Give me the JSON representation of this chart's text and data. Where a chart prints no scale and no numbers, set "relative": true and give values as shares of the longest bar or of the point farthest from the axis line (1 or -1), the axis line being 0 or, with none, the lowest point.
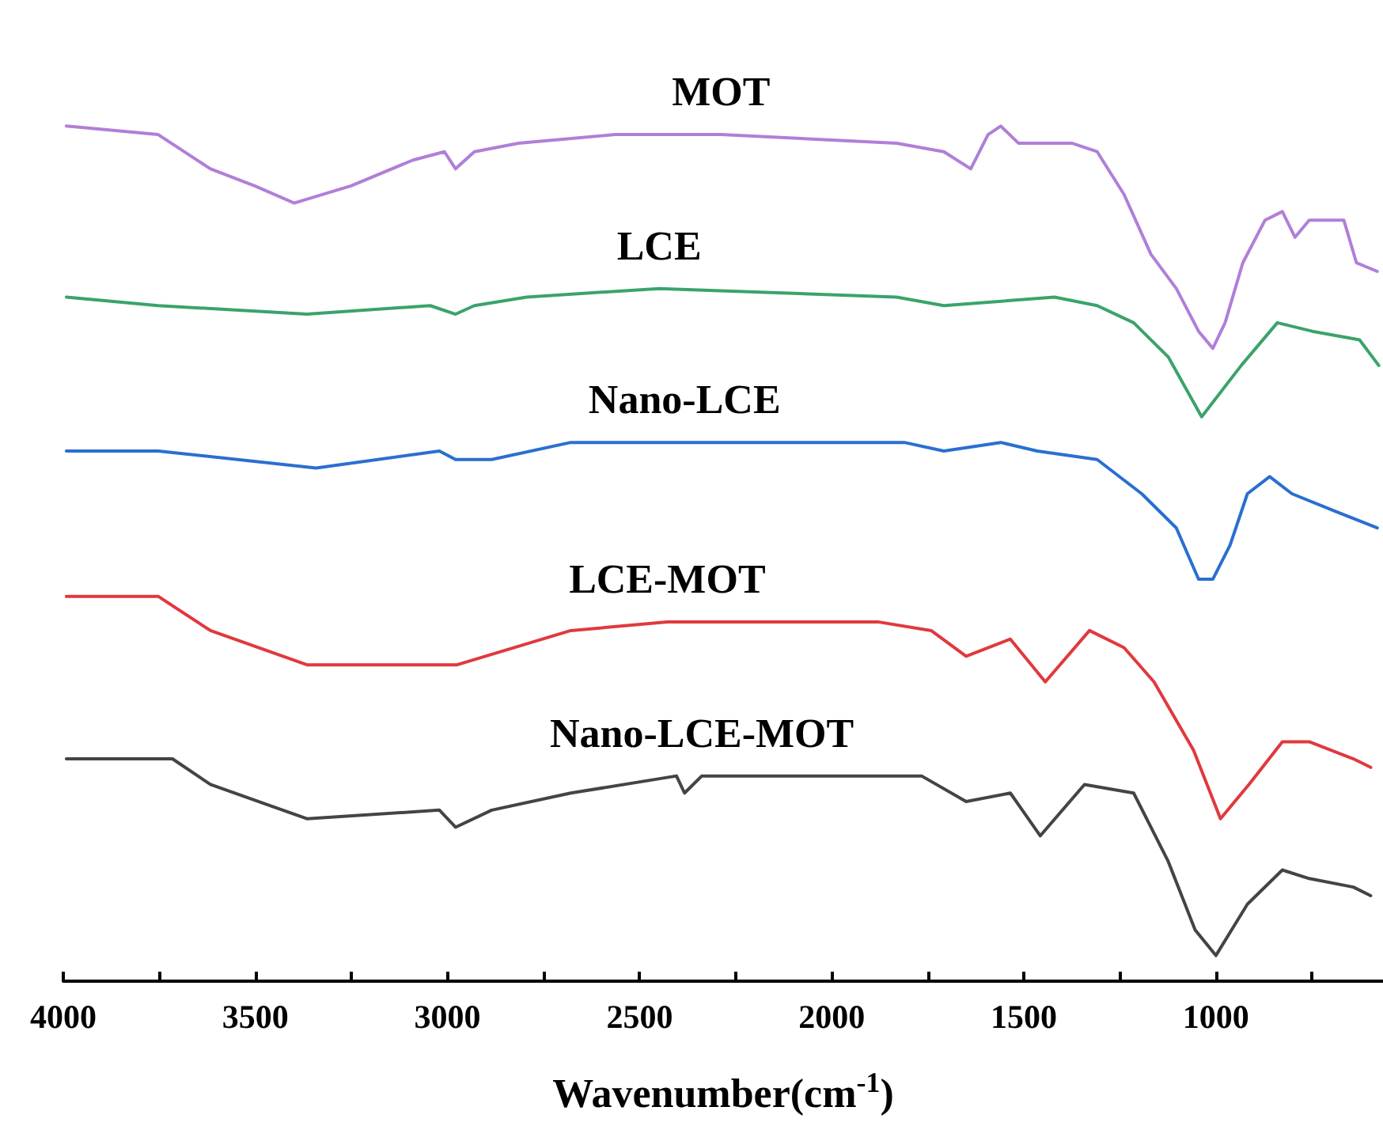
{
  "chart_data": {
    "type": "line",
    "relative": true,
    "xlabel": "Wavenumber(cm$^{-1}$)",
    "xlim": [
      4000,
      565
    ],
    "xticks": [
      4000,
      {
        "value": 3750,
        "label": null
      },
      3500,
      {
        "value": 3250,
        "label": null
      },
      3000,
      {
        "value": 2750,
        "label": null
      },
      2500,
      {
        "value": 2250,
        "label": null
      },
      2000,
      {
        "value": 1750,
        "label": null
      },
      1500,
      {
        "value": 1250,
        "label": null
      },
      1000,
      {
        "value": 750,
        "label": null
      }
    ],
    "grid": false,
    "legend": false,
    "marker": "none",
    "line_style": "solid",
    "series": [
      {
        "name": "MOT",
        "color": "#b07fd8",
        "x": [
          3992,
          3753,
          3617,
          3502,
          3399,
          3251,
          3091,
          3008,
          2979,
          2930,
          2815,
          2564,
          2288,
          1831,
          1708,
          1638,
          1593,
          1560,
          1514,
          1375,
          1309,
          1239,
          1169,
          1103,
          1045,
          1008,
          976,
          930,
          872,
          827,
          794,
          757,
          667,
          634,
          580
        ],
        "values": [
          1.0,
          0.99,
          0.95,
          0.93,
          0.91,
          0.93,
          0.96,
          0.97,
          0.95,
          0.97,
          0.98,
          0.99,
          0.99,
          0.98,
          0.97,
          0.95,
          0.99,
          1.0,
          0.98,
          0.98,
          0.97,
          0.92,
          0.85,
          0.81,
          0.76,
          0.74,
          0.77,
          0.84,
          0.89,
          0.9,
          0.87,
          0.89,
          0.89,
          0.84,
          0.83
        ]
      },
      {
        "name": "LCE",
        "color": "#3aa36b",
        "x": [
          3992,
          3753,
          3366,
          3045,
          2979,
          2930,
          2794,
          2449,
          1831,
          1708,
          1420,
          1309,
          1214,
          1124,
          1037,
          934,
          840,
          749,
          626,
          576
        ],
        "values": [
          0.8,
          0.79,
          0.78,
          0.79,
          0.78,
          0.79,
          0.8,
          0.81,
          0.8,
          0.79,
          0.8,
          0.79,
          0.77,
          0.73,
          0.66,
          0.72,
          0.77,
          0.76,
          0.75,
          0.72
        ]
      },
      {
        "name": "Nano-LCE",
        "color": "#2a6fd0",
        "x": [
          3992,
          3753,
          3342,
          3021,
          2979,
          2885,
          2679,
          2383,
          1811,
          1708,
          1560,
          1465,
          1309,
          1193,
          1103,
          1045,
          1008,
          963,
          918,
          860,
          802,
          692,
          580
        ],
        "values": [
          0.62,
          0.62,
          0.6,
          0.62,
          0.61,
          0.61,
          0.63,
          0.63,
          0.63,
          0.62,
          0.63,
          0.62,
          0.61,
          0.57,
          0.53,
          0.47,
          0.47,
          0.51,
          0.57,
          0.59,
          0.57,
          0.55,
          0.53
        ]
      },
      {
        "name": "LCE-MOT",
        "color": "#e0393e",
        "x": [
          3992,
          3753,
          3617,
          3366,
          2975,
          2679,
          2428,
          1877,
          1741,
          1650,
          1535,
          1444,
          1329,
          1239,
          1161,
          1058,
          988,
          914,
          827,
          757,
          642,
          597
        ],
        "values": [
          0.45,
          0.45,
          0.41,
          0.37,
          0.37,
          0.41,
          0.42,
          0.42,
          0.41,
          0.38,
          0.4,
          0.35,
          0.41,
          0.39,
          0.35,
          0.27,
          0.19,
          0.23,
          0.28,
          0.28,
          0.26,
          0.25
        ]
      },
      {
        "name": "Nano-LCE-MOT",
        "color": "#444444",
        "x": [
          3992,
          3716,
          3617,
          3366,
          3021,
          2979,
          2885,
          2679,
          2404,
          2383,
          2338,
          1766,
          1650,
          1535,
          1457,
          1342,
          1214,
          1124,
          1054,
          1000,
          918,
          827,
          757,
          642,
          597
        ],
        "values": [
          0.26,
          0.26,
          0.23,
          0.19,
          0.2,
          0.18,
          0.2,
          0.22,
          0.24,
          0.22,
          0.24,
          0.24,
          0.21,
          0.22,
          0.17,
          0.23,
          0.22,
          0.14,
          0.06,
          0.03,
          0.09,
          0.13,
          0.12,
          0.11,
          0.1
        ]
      }
    ]
  }
}
